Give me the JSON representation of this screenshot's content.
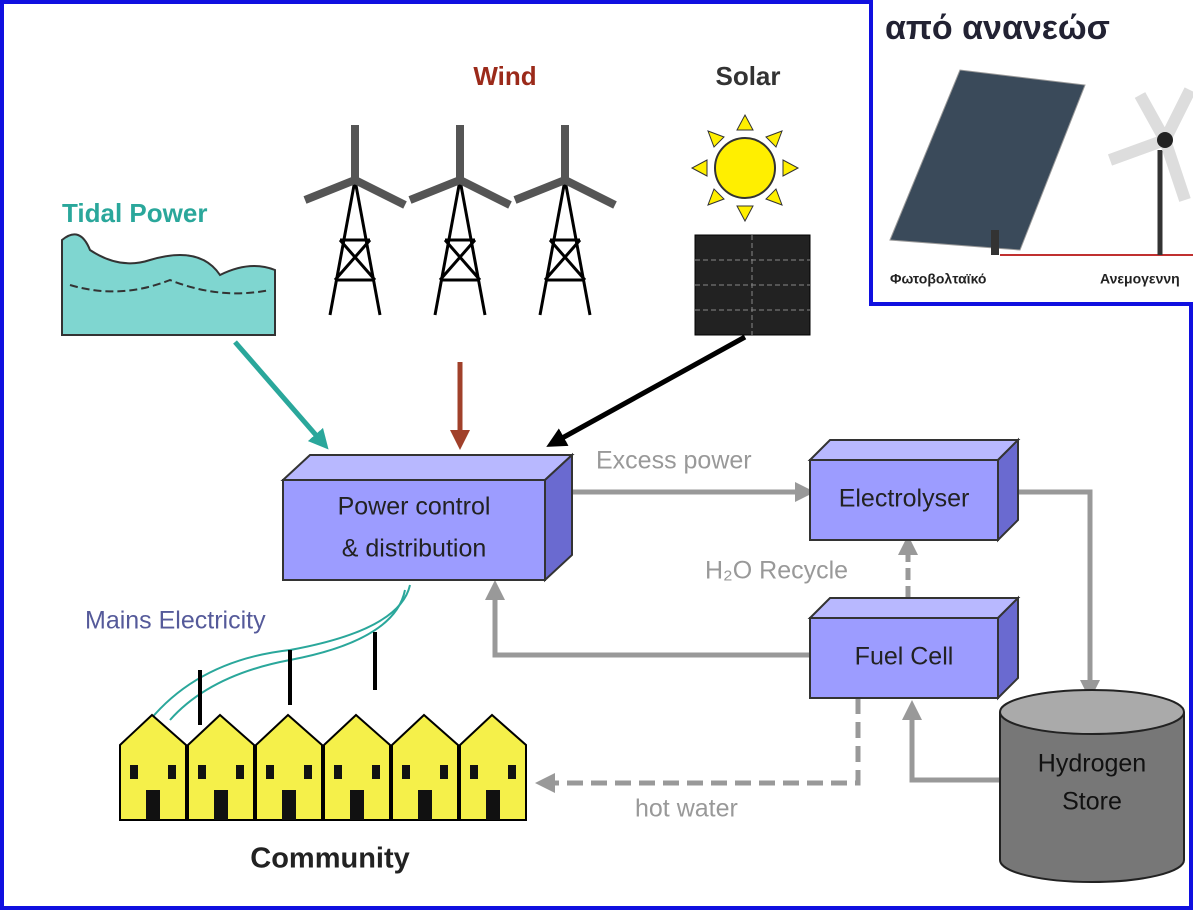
{
  "diagram": {
    "sources": {
      "wind": "Wind",
      "solar": "Solar",
      "tidal": "Tidal Power"
    },
    "nodes": {
      "power_control": [
        "Power control",
        "& distribution"
      ],
      "electrolyser": "Electrolyser",
      "fuel_cell": "Fuel Cell",
      "hydrogen_store": [
        "Hydrogen",
        "Store"
      ],
      "community": "Community"
    },
    "edges": {
      "excess_power": "Excess power",
      "h2o_recycle": "H₂O Recycle",
      "mains": "Mains Electricity",
      "hot_water": "hot water"
    },
    "inset": {
      "title": "από ανανεώσ",
      "labels": [
        "Φωτοβολταϊκό",
        "Ανεμογεννη"
      ]
    }
  }
}
